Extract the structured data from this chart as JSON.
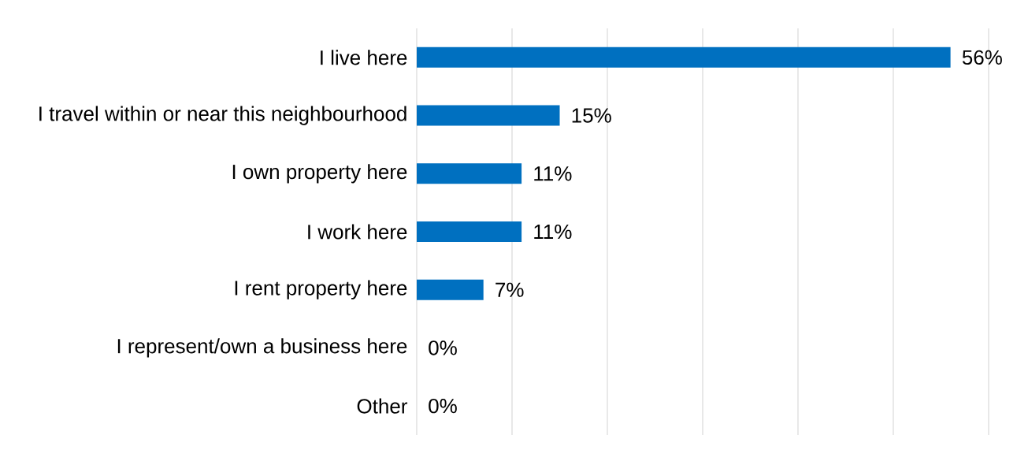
{
  "chart_data": {
    "type": "bar",
    "orientation": "horizontal",
    "categories": [
      "I live here",
      "I travel within or near this neighbourhood",
      "I own property here",
      "I work here",
      "I rent property here",
      "I represent/own a business here",
      "Other"
    ],
    "values": [
      56,
      15,
      11,
      11,
      7,
      0,
      0
    ],
    "value_labels": [
      "56%",
      "15%",
      "11%",
      "11%",
      "7%",
      "0%",
      "0%"
    ],
    "color": "#0070c0",
    "xlim": [
      0,
      60
    ],
    "xticks": [
      {
        "value": 0,
        "label": null
      },
      {
        "value": 10,
        "label": null
      },
      {
        "value": 20,
        "label": null
      },
      {
        "value": 30,
        "label": null
      },
      {
        "value": 40,
        "label": null
      },
      {
        "value": 50,
        "label": null
      },
      {
        "value": 60,
        "label": null
      }
    ],
    "grid": "x",
    "tick_labels": "y"
  }
}
